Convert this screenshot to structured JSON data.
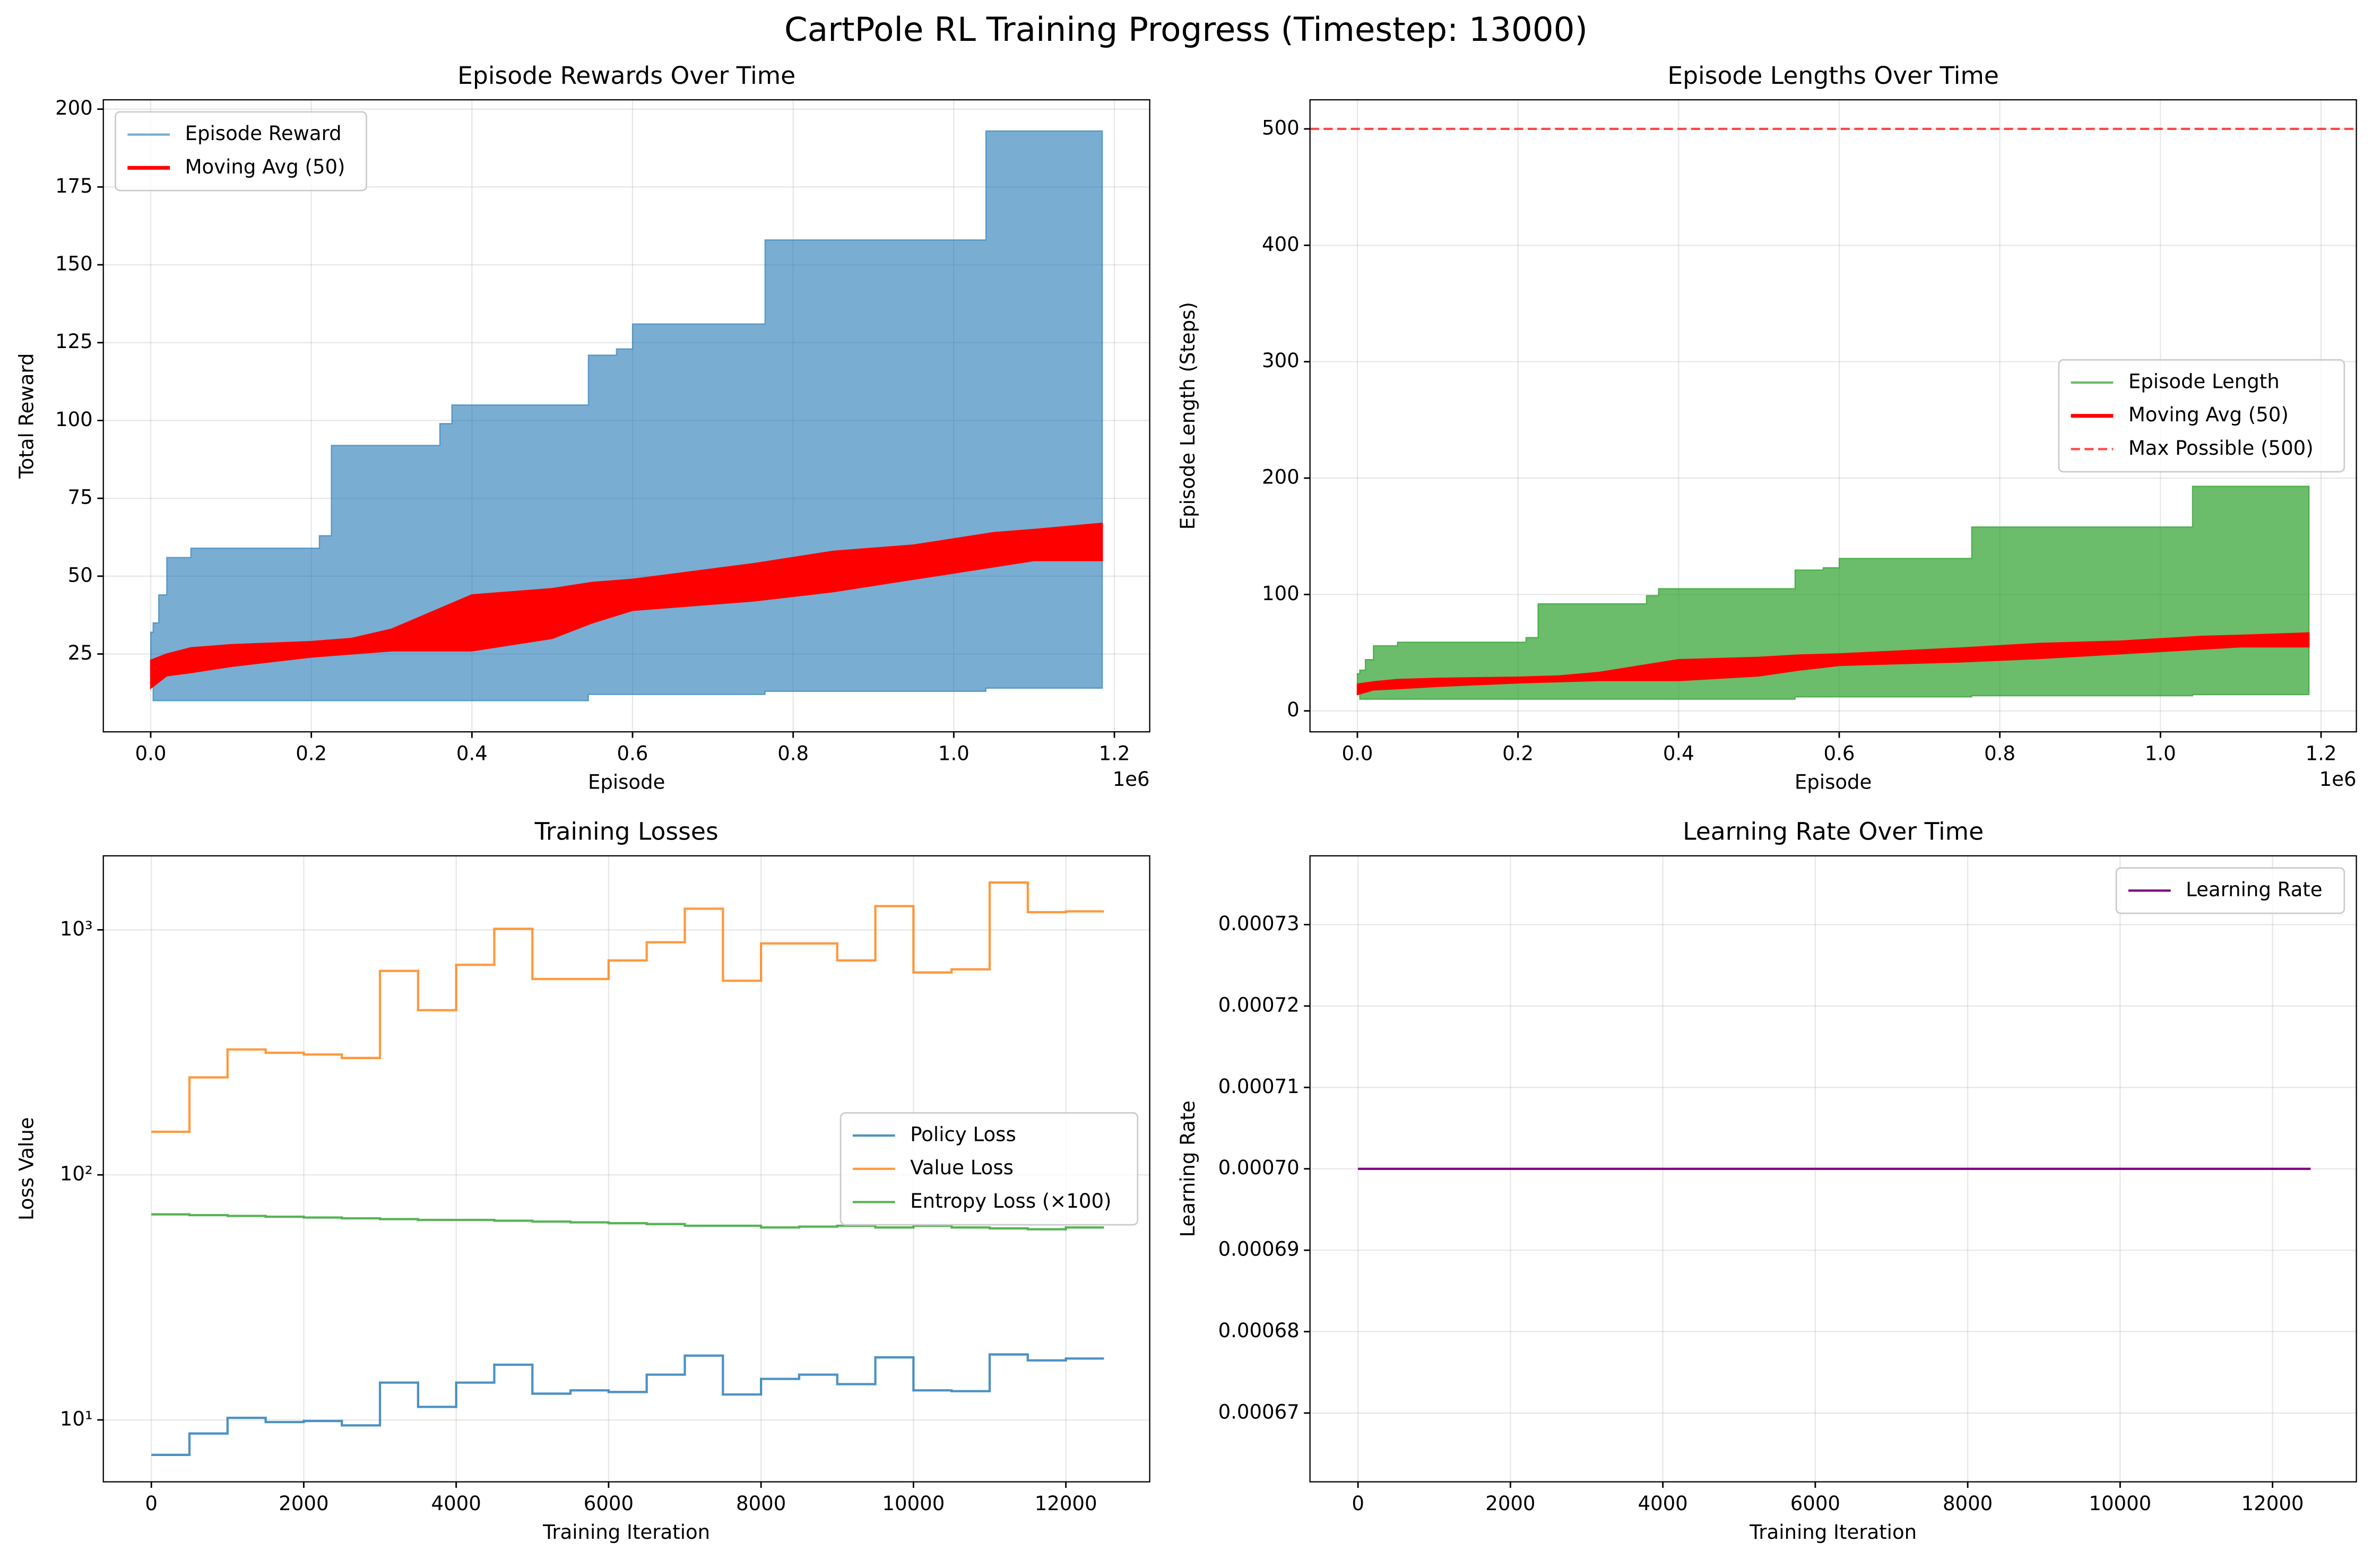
{
  "title": "CartPole RL Training Progress (Timestep: 13000)",
  "chart_data": [
    {
      "type": "line",
      "title": "Episode Rewards Over Time",
      "xlabel": "Episode",
      "ylabel": "Total Reward",
      "x_offset_label": "1e6",
      "xlim": [
        -59000,
        1244000
      ],
      "ylim": [
        0,
        203
      ],
      "xticks": [
        {
          "value": 0,
          "label": "0.0"
        },
        {
          "value": 200000,
          "label": "0.2"
        },
        {
          "value": 400000,
          "label": "0.4"
        },
        {
          "value": 600000,
          "label": "0.6"
        },
        {
          "value": 800000,
          "label": "0.8"
        },
        {
          "value": 1000000,
          "label": "1.0"
        },
        {
          "value": 1200000,
          "label": "1.2"
        }
      ],
      "yticks": [
        25,
        50,
        75,
        100,
        125,
        150,
        175,
        200
      ],
      "grid": true,
      "legend": "upper left",
      "series": [
        {
          "name": "Episode Reward",
          "color": "#1f77b4",
          "style": "band",
          "drawstyle": "steps-post",
          "opacity": 0.6,
          "linewidth": 1.5,
          "x": [
            0,
            3000,
            10000,
            20000,
            25000,
            50000,
            210000,
            225000,
            360000,
            375000,
            545000,
            580000,
            600000,
            765000,
            1040000,
            1185000
          ],
          "high": [
            32,
            35,
            44,
            56,
            56,
            59,
            63,
            92,
            99,
            105,
            121,
            123,
            131,
            158,
            193,
            193
          ],
          "low": [
            15,
            10,
            10,
            10,
            10,
            10,
            10,
            10,
            10,
            10,
            12,
            12,
            12,
            13,
            14,
            15
          ]
        },
        {
          "name": "Moving Avg (50)",
          "color": "#ff0000",
          "style": "band",
          "opacity": 1,
          "linewidth": 2.5,
          "x": [
            0,
            20000,
            50000,
            100000,
            200000,
            250000,
            300000,
            400000,
            500000,
            550000,
            600000,
            750000,
            850000,
            950000,
            1050000,
            1100000,
            1185000
          ],
          "high": [
            23,
            25,
            27,
            28,
            29,
            30,
            33,
            44,
            46,
            48,
            49,
            54,
            58,
            60,
            64,
            65,
            67
          ],
          "low": [
            14,
            18,
            19,
            21,
            24,
            25,
            26,
            26,
            30,
            35,
            39,
            42,
            45,
            49,
            53,
            55,
            55
          ]
        }
      ]
    },
    {
      "type": "line",
      "title": "Episode Lengths Over Time",
      "xlabel": "Episode",
      "ylabel": "Episode Length (Steps)",
      "x_offset_label": "1e6",
      "xlim": [
        -59000,
        1244000
      ],
      "ylim": [
        -18,
        525
      ],
      "xticks": [
        {
          "value": 0,
          "label": "0.0"
        },
        {
          "value": 200000,
          "label": "0.2"
        },
        {
          "value": 400000,
          "label": "0.4"
        },
        {
          "value": 600000,
          "label": "0.6"
        },
        {
          "value": 800000,
          "label": "0.8"
        },
        {
          "value": 1000000,
          "label": "1.0"
        },
        {
          "value": 1200000,
          "label": "1.2"
        }
      ],
      "yticks": [
        0,
        100,
        200,
        300,
        400,
        500
      ],
      "grid": true,
      "legend": "center right",
      "series": [
        {
          "name": "Episode Length",
          "color": "#2ca02c",
          "style": "band",
          "drawstyle": "steps-post",
          "opacity": 0.7,
          "linewidth": 1.5,
          "x": [
            0,
            3000,
            10000,
            20000,
            25000,
            50000,
            210000,
            225000,
            360000,
            375000,
            545000,
            580000,
            600000,
            765000,
            1040000,
            1185000
          ],
          "high": [
            32,
            35,
            44,
            56,
            56,
            59,
            63,
            92,
            99,
            105,
            121,
            123,
            131,
            158,
            193,
            193
          ],
          "low": [
            15,
            10,
            10,
            10,
            10,
            10,
            10,
            10,
            10,
            10,
            12,
            12,
            12,
            13,
            14,
            15
          ]
        },
        {
          "name": "Moving Avg (50)",
          "color": "#ff0000",
          "style": "band",
          "opacity": 1,
          "linewidth": 2.5,
          "x": [
            0,
            20000,
            50000,
            100000,
            200000,
            250000,
            300000,
            400000,
            500000,
            550000,
            600000,
            750000,
            850000,
            950000,
            1050000,
            1100000,
            1185000
          ],
          "high": [
            23,
            25,
            27,
            28,
            29,
            30,
            33,
            44,
            46,
            48,
            49,
            54,
            58,
            60,
            64,
            65,
            67
          ],
          "low": [
            14,
            18,
            19,
            21,
            24,
            25,
            26,
            26,
            30,
            35,
            39,
            42,
            45,
            49,
            53,
            55,
            55
          ]
        },
        {
          "name": "Max Possible (500)",
          "color": "#ff0000",
          "style": "hline",
          "dashed": true,
          "opacity": 0.7,
          "linewidth": 1.5,
          "value": 500
        }
      ]
    },
    {
      "type": "line",
      "title": "Training Losses",
      "xlabel": "Training Iteration",
      "ylabel": "Loss Value",
      "log_y": true,
      "xlim": [
        -630,
        13100
      ],
      "ylim": [
        5.59,
        2005
      ],
      "xticks": [
        0,
        2000,
        4000,
        6000,
        8000,
        10000,
        12000
      ],
      "yticks": [
        {
          "value": 10,
          "label": "10¹"
        },
        {
          "value": 100,
          "label": "10²"
        },
        {
          "value": 1000,
          "label": "10³"
        }
      ],
      "grid": true,
      "legend": "center right",
      "x": [
        0,
        500,
        1000,
        1500,
        2000,
        2500,
        3000,
        3500,
        4000,
        4500,
        5000,
        5500,
        6000,
        6500,
        7000,
        7500,
        8000,
        8500,
        9000,
        9500,
        10000,
        10500,
        11000,
        11500,
        12000,
        12500
      ],
      "series": [
        {
          "name": "Policy Loss",
          "color": "#1f77b4",
          "style": "line",
          "drawstyle": "steps-post",
          "opacity": 0.8,
          "linewidth": 1.5,
          "values": [
            7.2,
            8.8,
            10.2,
            9.8,
            9.9,
            9.5,
            14.2,
            11.3,
            14.2,
            16.8,
            12.8,
            13.2,
            13,
            15.3,
            18.3,
            12.7,
            14.7,
            15.3,
            14,
            18,
            13.2,
            13.1,
            18.5,
            17.5,
            17.8,
            17.8
          ]
        },
        {
          "name": "Value Loss",
          "color": "#ff7f0e",
          "style": "line",
          "drawstyle": "steps-post",
          "opacity": 0.8,
          "linewidth": 1.5,
          "values": [
            150,
            250,
            325,
            315,
            310,
            300,
            680,
            470,
            720,
            1010,
            630,
            630,
            750,
            890,
            1220,
            620,
            880,
            880,
            750,
            1250,
            670,
            690,
            1560,
            1180,
            1190,
            1190
          ]
        },
        {
          "name": "Entropy Loss (×100)",
          "color": "#2ca02c",
          "style": "line",
          "drawstyle": "steps-post",
          "opacity": 0.8,
          "linewidth": 1.5,
          "values": [
            69,
            68.5,
            68,
            67.5,
            67,
            66.5,
            66,
            65.5,
            65.5,
            65,
            64.5,
            64,
            63.5,
            63,
            62,
            62,
            61,
            61.5,
            62,
            61,
            62,
            61,
            60.5,
            60,
            61,
            61
          ]
        }
      ]
    },
    {
      "type": "line",
      "title": "Learning Rate Over Time",
      "xlabel": "Training Iteration",
      "ylabel": "Learning Rate",
      "xlim": [
        -630,
        13100
      ],
      "ylim": [
        0.00066155,
        0.00073845
      ],
      "xticks": [
        0,
        2000,
        4000,
        6000,
        8000,
        10000,
        12000
      ],
      "yticks": [
        0.00067,
        0.00068,
        0.00069,
        {
          "value": 0.0007,
          "label": "0.00070"
        },
        0.00071,
        0.00072,
        0.00073
      ],
      "grid": true,
      "legend": "upper right",
      "x": [
        0,
        12500
      ],
      "series": [
        {
          "name": "Learning Rate",
          "color": "#800080",
          "style": "line",
          "opacity": 1,
          "linewidth": 1.5,
          "values": [
            0.0007,
            0.0007
          ]
        }
      ]
    }
  ]
}
